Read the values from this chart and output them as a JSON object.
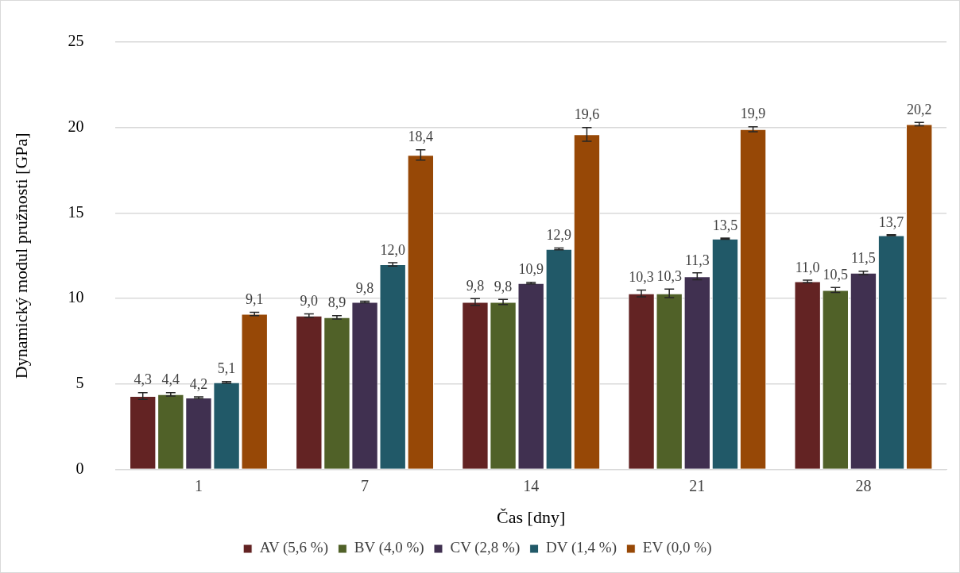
{
  "chart_data": {
    "type": "bar",
    "xlabel": "Čas [dny]",
    "ylabel": "Dynamický modul pružnosti [GPa]",
    "categories": [
      "1",
      "7",
      "14",
      "21",
      "28"
    ],
    "series": [
      {
        "name": "AV (5,6 %)",
        "color": "#632323",
        "values": [
          4.3,
          9.0,
          9.8,
          10.3,
          11.0
        ],
        "value_labels": [
          "4,3",
          "9,0",
          "9,8",
          "10,3",
          "11,0"
        ],
        "errors": [
          0.2,
          0.1,
          0.2,
          0.2,
          0.08
        ]
      },
      {
        "name": "BV (4,0 %)",
        "color": "#506128",
        "values": [
          4.4,
          8.9,
          9.8,
          10.3,
          10.5
        ],
        "value_labels": [
          "4,4",
          "8,9",
          "9,8",
          "10,3",
          "10,5"
        ],
        "errors": [
          0.1,
          0.1,
          0.15,
          0.25,
          0.15
        ]
      },
      {
        "name": "CV (2,8 %)",
        "color": "#403050",
        "values": [
          4.2,
          9.8,
          10.9,
          11.3,
          11.5
        ],
        "value_labels": [
          "4,2",
          "9,8",
          "10,9",
          "11,3",
          "11,5"
        ],
        "errors": [
          0.05,
          0.05,
          0.05,
          0.2,
          0.1
        ]
      },
      {
        "name": "DV (1,4 %)",
        "color": "#215968",
        "values": [
          5.1,
          12.0,
          12.9,
          13.5,
          13.7
        ],
        "value_labels": [
          "5,1",
          "12,0",
          "12,9",
          "13,5",
          "13,7"
        ],
        "errors": [
          0.05,
          0.1,
          0.05,
          0.03,
          0.03
        ]
      },
      {
        "name": "EV (0,0 %)",
        "color": "#974806",
        "values": [
          9.1,
          18.4,
          19.6,
          19.9,
          20.2
        ],
        "value_labels": [
          "9,1",
          "18,4",
          "19,6",
          "19,9",
          "20,2"
        ],
        "errors": [
          0.1,
          0.3,
          0.4,
          0.15,
          0.1
        ]
      }
    ],
    "ylim": [
      0,
      25
    ],
    "yticks": [
      0,
      5,
      10,
      15,
      20,
      25
    ],
    "grid": "y",
    "legend": "bottom"
  }
}
